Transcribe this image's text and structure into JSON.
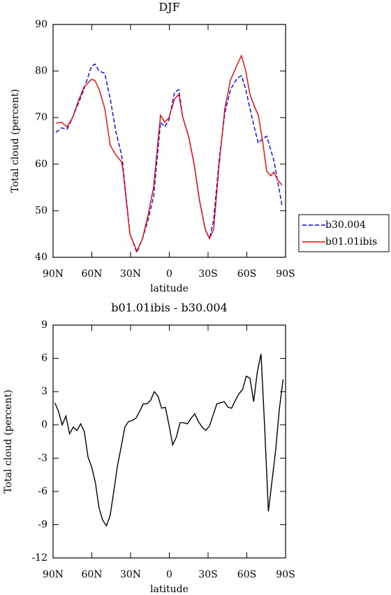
{
  "chart_data": [
    {
      "type": "line",
      "title": "DJF",
      "xlabel": "latitude",
      "ylabel": "Total cloud (percent)",
      "xlim": [
        90,
        -90
      ],
      "xticks": [
        {
          "value": 90,
          "label": "90N"
        },
        {
          "value": 60,
          "label": "60N"
        },
        {
          "value": 30,
          "label": "30N"
        },
        0,
        {
          "value": -30,
          "label": "30S"
        },
        {
          "value": -60,
          "label": "60S"
        },
        {
          "value": -90,
          "label": "90S"
        }
      ],
      "ylim": [
        40,
        90
      ],
      "yticks": [
        40,
        50,
        60,
        70,
        80,
        90
      ],
      "legend": "right",
      "x": [
        87.8,
        83.5,
        79.2,
        74.9,
        70.5,
        66.2,
        60.3,
        57.6,
        54.3,
        50,
        45.7,
        41.4,
        37,
        36,
        30.5,
        25.1,
        20.8,
        16.5,
        12.2,
        6.8,
        3.5,
        0.3,
        -4.1,
        -7.3,
        -10.5,
        -14.9,
        -19.2,
        -23.5,
        -27.8,
        -31.1,
        -34.3,
        -38.6,
        -43,
        -47.3,
        -52.7,
        -55.9,
        -59.2,
        -62.4,
        -65.7,
        -68.9,
        -72.2,
        -75.4,
        -78.6,
        -80.8,
        -84.1,
        -87.3
      ],
      "series": [
        {
          "name": "b30.004",
          "color": "#0000ff",
          "dash": true,
          "values": [
            66.8,
            67.8,
            67.5,
            70,
            73,
            76,
            81,
            81.5,
            80,
            79.5,
            74,
            67,
            62,
            60,
            45,
            41,
            44,
            48,
            53,
            69,
            68,
            69.5,
            75.5,
            76,
            70,
            66,
            60,
            52,
            46,
            44,
            48,
            61,
            71,
            76,
            78.5,
            79,
            76,
            72,
            68,
            64.5,
            65.5,
            66,
            63,
            61,
            56,
            51
          ]
        },
        {
          "name": "b01.01ibis",
          "color": "#ff0000",
          "dash": false,
          "values": [
            68.8,
            69,
            68,
            70,
            73.5,
            76.5,
            78.2,
            78,
            76,
            72,
            64,
            62,
            60.5,
            59,
            45,
            41.3,
            44,
            49,
            55,
            70.5,
            69,
            70,
            74,
            75,
            70,
            66,
            60,
            52,
            46,
            44,
            46,
            60,
            72,
            78,
            81.5,
            83.3,
            80,
            75,
            72.5,
            70.5,
            65,
            58.5,
            57.5,
            58.3,
            56.5,
            55.5
          ]
        }
      ]
    },
    {
      "type": "line",
      "title": "b01.01ibis - b30.004",
      "xlabel": "latitude",
      "ylabel": "Total cloud (percent)",
      "xlim": [
        90,
        -90
      ],
      "xticks": [
        {
          "value": 90,
          "label": "90N"
        },
        {
          "value": 60,
          "label": "60N"
        },
        {
          "value": 30,
          "label": "30N"
        },
        0,
        {
          "value": -30,
          "label": "30S"
        },
        {
          "value": -60,
          "label": "60S"
        },
        {
          "value": -90,
          "label": "90S"
        }
      ],
      "ylim": [
        -12,
        9
      ],
      "yticks": [
        -12,
        -9,
        -6,
        -3,
        0,
        3,
        6,
        9
      ],
      "x": [
        88.6,
        85.75,
        82.9,
        80.05,
        77.2,
        74.35,
        71.5,
        68.65,
        65.8,
        62.95,
        60.1,
        57.25,
        54.4,
        51.55,
        48.7,
        45.85,
        43,
        40.15,
        37.3,
        34.45,
        31.6,
        28.75,
        25.9,
        23.05,
        20.2,
        17.35,
        14.5,
        11.65,
        8.8,
        5.95,
        3.1,
        0.25,
        -2.6,
        -5.45,
        -8.3,
        -11.15,
        -14,
        -16.85,
        -19.7,
        -22.55,
        -25.4,
        -28.25,
        -31.1,
        -33.95,
        -36.8,
        -39.65,
        -42.5,
        -45.35,
        -48.2,
        -51.05,
        -53.9,
        -56.75,
        -59.6,
        -62.45,
        -65.3,
        -68.15,
        -71,
        -73.85,
        -76.7,
        -79.55,
        -82.4,
        -85.25,
        -88.1
      ],
      "series": [
        {
          "color": "#000000",
          "dash": false,
          "values": [
            2,
            1.2,
            0,
            0.8,
            -0.8,
            -0.2,
            -0.5,
            0.1,
            -0.6,
            -2.9,
            -3.8,
            -5.2,
            -7.5,
            -8.6,
            -9.1,
            -8.2,
            -6,
            -3.7,
            -2,
            -0.2,
            0.3,
            0.4,
            0.6,
            1.2,
            1.9,
            1.9,
            2.2,
            3,
            2.6,
            1.5,
            1.6,
            0,
            -1.8,
            -1.1,
            0.2,
            0.2,
            0.1,
            0.6,
            1,
            0.3,
            -0.2,
            -0.5,
            -0.1,
            0.9,
            1.9,
            2,
            2.1,
            1.6,
            1.5,
            2.2,
            2.8,
            3.2,
            4.4,
            4.2,
            2.1,
            4.8,
            6.4,
            -0.3,
            -7.8,
            -5,
            -2.2,
            1.5,
            4.1
          ]
        }
      ]
    }
  ]
}
